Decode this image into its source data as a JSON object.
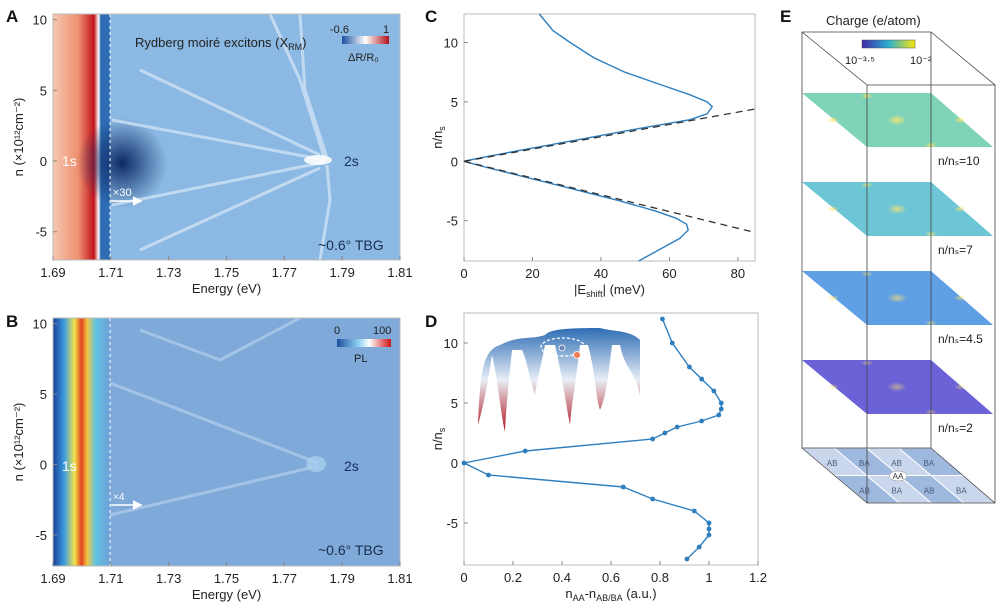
{
  "panels": {
    "A": {
      "letter": "A",
      "title": "Rydberg moiré excitons (X",
      "title_sub": "RM",
      "title_end": ")",
      "label_1s": "1s",
      "label_2s": "2s",
      "multiplier": "×30",
      "sample": "~0.6° TBG",
      "colorbar_min": "-0.6",
      "colorbar_max": "1",
      "colorbar_label": "ΔR/R₀"
    },
    "B": {
      "letter": "B",
      "label_1s": "1s",
      "label_2s": "2s",
      "multiplier": "×4",
      "sample": "~0.6° TBG",
      "colorbar_min": "0",
      "colorbar_max": "100",
      "colorbar_label": "PL"
    },
    "C": {
      "letter": "C"
    },
    "D": {
      "letter": "D"
    },
    "E": {
      "letter": "E",
      "title": "Charge (e/atom)",
      "colorbar_min": "10⁻³·⁵",
      "colorbar_max": "10⁻²",
      "layers": [
        {
          "label": "n/nₛ=10",
          "color": "#7fd3b8"
        },
        {
          "label": "n/nₛ=7",
          "color": "#6cc6d6"
        },
        {
          "label": "n/nₛ=4.5",
          "color": "#5f9fe4"
        },
        {
          "label": "n/nₛ=2",
          "color": "#6a62d6"
        }
      ],
      "stacking_labels": [
        "AB",
        "BA",
        "AB",
        "BA",
        "AA",
        "AB",
        "BA",
        "AB",
        "BA"
      ]
    }
  },
  "colors": {
    "line": "#2f7fbf",
    "dash": "#333333",
    "red": "#c0141c",
    "blue": "#2e6db4"
  },
  "chart_data": [
    {
      "id": "A",
      "type": "heatmap",
      "xlabel": "Energy (eV)",
      "ylabel": "n (×10¹²cm⁻²)",
      "xlim": [
        1.69,
        1.81
      ],
      "ylim": [
        -7,
        10.4
      ],
      "xticks": [
        1.69,
        1.71,
        1.73,
        1.75,
        1.77,
        1.79,
        1.81
      ],
      "yticks": [
        -5,
        0,
        5,
        10
      ],
      "colormap": "blue-white-red",
      "clim": [
        -0.6,
        1
      ]
    },
    {
      "id": "B",
      "type": "heatmap",
      "xlabel": "Energy (eV)",
      "ylabel": "n (×10¹²cm⁻²)",
      "xlim": [
        1.69,
        1.81
      ],
      "ylim": [
        -7.2,
        10.4
      ],
      "xticks": [
        1.69,
        1.71,
        1.73,
        1.75,
        1.77,
        1.79,
        1.81
      ],
      "yticks": [
        -5,
        0,
        5,
        10
      ],
      "colormap": "jet",
      "clim": [
        0,
        100
      ]
    },
    {
      "id": "C",
      "type": "line",
      "xlabel": "|E",
      "xlabel_sub": "shift",
      "xlabel_end": "| (meV)",
      "ylabel": "n/n",
      "ylabel_sub": "s",
      "xlim": [
        0,
        85
      ],
      "ylim": [
        -8.4,
        12.4
      ],
      "xticks": [
        0,
        20,
        40,
        60,
        80
      ],
      "yticks": [
        -5,
        0,
        5,
        10
      ],
      "series": [
        {
          "style": "solid",
          "points": [
            [
              22,
              12.4
            ],
            [
              26,
              11
            ],
            [
              31,
              10
            ],
            [
              38,
              8.7
            ],
            [
              47,
              7.5
            ],
            [
              57,
              6.5
            ],
            [
              66,
              5.6
            ],
            [
              71,
              5.0
            ],
            [
              72.5,
              4.6
            ],
            [
              71,
              4.0
            ],
            [
              66,
              3.5
            ],
            [
              50,
              2.7
            ],
            [
              33,
              1.8
            ],
            [
              16,
              0.9
            ],
            [
              5,
              0.3
            ],
            [
              0,
              0
            ],
            [
              5,
              -0.4
            ],
            [
              16,
              -1.2
            ],
            [
              30,
              -2.2
            ],
            [
              45,
              -3.3
            ],
            [
              56,
              -4.2
            ],
            [
              62,
              -4.8
            ],
            [
              65,
              -5.3
            ],
            [
              65.5,
              -5.8
            ],
            [
              63,
              -6.5
            ],
            [
              58,
              -7.3
            ],
            [
              51,
              -8.4
            ]
          ]
        },
        {
          "style": "dashed",
          "points": [
            [
              0,
              0
            ],
            [
              85,
              4.4
            ]
          ]
        },
        {
          "style": "dashed",
          "points": [
            [
              0,
              0
            ],
            [
              85,
              -6.0
            ]
          ]
        }
      ]
    },
    {
      "id": "D",
      "type": "line",
      "xlabel": "n",
      "xlabel_sub": "AA",
      "xlabel_mid": "-n",
      "xlabel_sub2": "AB/BA",
      "xlabel_end": " (a.u.)",
      "ylabel": "n/n",
      "ylabel_sub": "s",
      "xlim": [
        0,
        1.2
      ],
      "ylim": [
        -8.5,
        12.5
      ],
      "xticks": [
        0,
        0.2,
        0.4,
        0.6,
        0.8,
        1,
        1.2
      ],
      "yticks": [
        -5,
        0,
        5,
        10
      ],
      "series": [
        {
          "style": "solid-markers",
          "points": [
            [
              0.81,
              12
            ],
            [
              0.85,
              10
            ],
            [
              0.92,
              8
            ],
            [
              0.97,
              7
            ],
            [
              1.02,
              6
            ],
            [
              1.05,
              5
            ],
            [
              1.05,
              4.5
            ],
            [
              1.04,
              4
            ],
            [
              0.97,
              3.5
            ],
            [
              0.87,
              3
            ],
            [
              0.82,
              2.5
            ],
            [
              0.77,
              2
            ],
            [
              0.25,
              1
            ],
            [
              0,
              0
            ],
            [
              0.1,
              -1
            ],
            [
              0.65,
              -2
            ],
            [
              0.77,
              -3
            ],
            [
              0.94,
              -4
            ],
            [
              1.0,
              -5
            ],
            [
              1.0,
              -5.5
            ],
            [
              1.0,
              -6
            ],
            [
              0.96,
              -7
            ],
            [
              0.91,
              -8
            ]
          ]
        }
      ]
    }
  ]
}
